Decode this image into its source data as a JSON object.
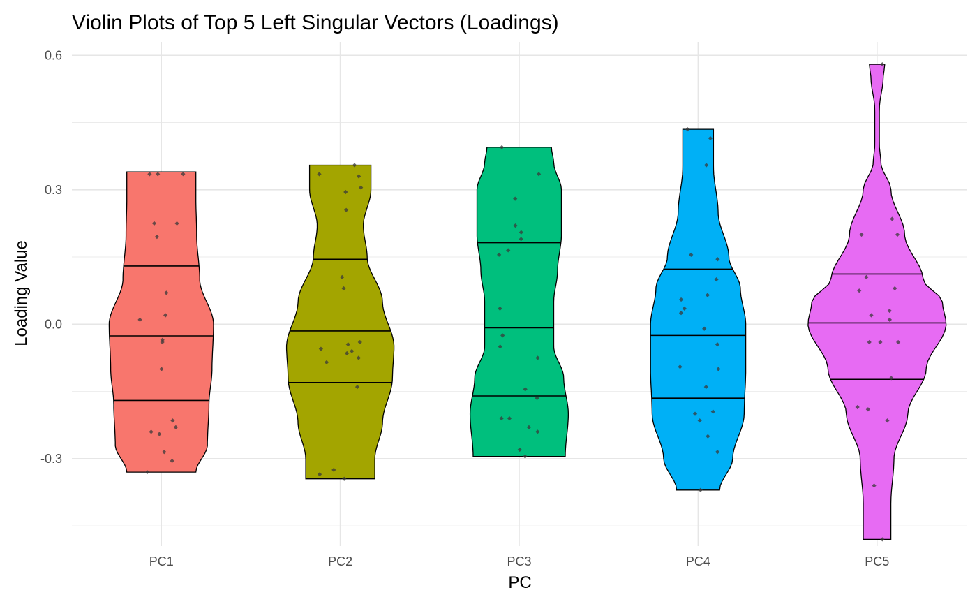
{
  "chart_data": {
    "type": "violin",
    "title": "Violin Plots of Top 5 Left Singular Vectors (Loadings)",
    "xlabel": "PC",
    "ylabel": "Loading Value",
    "categories": [
      "PC1",
      "PC2",
      "PC3",
      "PC4",
      "PC5"
    ],
    "ylim": [
      -0.495,
      0.63
    ],
    "yticks": [
      -0.3,
      0.0,
      0.3,
      0.6
    ],
    "ytick_labels": [
      "-0.3",
      "0.0",
      "0.3",
      "0.6"
    ],
    "grid": true,
    "legend": "none",
    "series": [
      {
        "category": "PC1",
        "color": "#F8766D",
        "min": -0.33,
        "max": 0.34,
        "quantiles": [
          -0.17,
          -0.026,
          0.13
        ],
        "density": [
          [
            -0.33,
            0.45
          ],
          [
            -0.27,
            0.6
          ],
          [
            -0.18,
            0.62
          ],
          [
            -0.1,
            0.66
          ],
          [
            0.0,
            0.68
          ],
          [
            0.1,
            0.5
          ],
          [
            0.2,
            0.46
          ],
          [
            0.28,
            0.45
          ],
          [
            0.34,
            0.45
          ]
        ],
        "points": [
          -0.33,
          -0.305,
          -0.285,
          -0.245,
          -0.24,
          -0.23,
          -0.215,
          -0.1,
          -0.035,
          -0.04,
          0.01,
          0.02,
          0.07,
          0.195,
          0.225,
          0.225,
          0.335,
          0.335,
          0.335
        ]
      },
      {
        "category": "PC2",
        "color": "#A3A500",
        "min": -0.345,
        "max": 0.355,
        "quantiles": [
          -0.13,
          -0.015,
          0.145
        ],
        "density": [
          [
            -0.345,
            0.45
          ],
          [
            -0.3,
            0.45
          ],
          [
            -0.22,
            0.55
          ],
          [
            -0.12,
            0.68
          ],
          [
            -0.05,
            0.7
          ],
          [
            0.05,
            0.55
          ],
          [
            0.15,
            0.35
          ],
          [
            0.22,
            0.3
          ],
          [
            0.3,
            0.4
          ],
          [
            0.355,
            0.4
          ]
        ],
        "points": [
          -0.345,
          -0.335,
          -0.325,
          -0.14,
          -0.085,
          -0.075,
          -0.065,
          -0.06,
          -0.055,
          -0.045,
          -0.04,
          0.08,
          0.105,
          0.255,
          0.295,
          0.305,
          0.33,
          0.335,
          0.355
        ]
      },
      {
        "category": "PC3",
        "color": "#00BF7D",
        "min": -0.295,
        "max": 0.395,
        "quantiles": [
          -0.16,
          -0.008,
          0.182
        ],
        "density": [
          [
            -0.295,
            0.6
          ],
          [
            -0.2,
            0.64
          ],
          [
            -0.12,
            0.58
          ],
          [
            -0.05,
            0.45
          ],
          [
            0.05,
            0.45
          ],
          [
            0.12,
            0.5
          ],
          [
            0.2,
            0.55
          ],
          [
            0.3,
            0.55
          ],
          [
            0.36,
            0.45
          ],
          [
            0.395,
            0.42
          ]
        ],
        "points": [
          -0.295,
          -0.28,
          -0.24,
          -0.23,
          -0.21,
          -0.21,
          -0.165,
          -0.145,
          -0.075,
          -0.05,
          -0.025,
          0.035,
          0.155,
          0.165,
          0.19,
          0.205,
          0.22,
          0.28,
          0.335,
          0.395
        ]
      },
      {
        "category": "PC4",
        "color": "#00B0F6",
        "min": -0.37,
        "max": 0.435,
        "quantiles": [
          -0.165,
          -0.025,
          0.123
        ],
        "density": [
          [
            -0.37,
            0.28
          ],
          [
            -0.3,
            0.45
          ],
          [
            -0.2,
            0.6
          ],
          [
            -0.1,
            0.62
          ],
          [
            0.0,
            0.62
          ],
          [
            0.08,
            0.55
          ],
          [
            0.15,
            0.4
          ],
          [
            0.25,
            0.26
          ],
          [
            0.35,
            0.2
          ],
          [
            0.435,
            0.2
          ]
        ],
        "points": [
          -0.37,
          -0.285,
          -0.25,
          -0.215,
          -0.2,
          -0.195,
          -0.14,
          -0.095,
          -0.1,
          -0.045,
          -0.01,
          0.025,
          0.035,
          0.055,
          0.065,
          0.1,
          0.145,
          0.155,
          0.355,
          0.415,
          0.435
        ]
      },
      {
        "category": "PC5",
        "color": "#E76BF3",
        "min": -0.48,
        "max": 0.58,
        "quantiles": [
          -0.123,
          0.003,
          0.112
        ],
        "density": [
          [
            -0.48,
            0.18
          ],
          [
            -0.4,
            0.18
          ],
          [
            -0.3,
            0.22
          ],
          [
            -0.2,
            0.4
          ],
          [
            -0.1,
            0.64
          ],
          [
            0.0,
            0.9
          ],
          [
            0.05,
            0.85
          ],
          [
            0.1,
            0.6
          ],
          [
            0.2,
            0.36
          ],
          [
            0.3,
            0.18
          ],
          [
            0.36,
            0.05
          ],
          [
            0.4,
            0.03
          ],
          [
            0.48,
            0.03
          ],
          [
            0.55,
            0.08
          ],
          [
            0.58,
            0.1
          ]
        ],
        "points": [
          -0.48,
          -0.36,
          -0.215,
          -0.19,
          -0.185,
          -0.12,
          -0.04,
          -0.04,
          -0.04,
          0.01,
          0.02,
          0.03,
          0.075,
          0.08,
          0.105,
          0.2,
          0.2,
          0.235,
          0.58
        ]
      }
    ]
  }
}
